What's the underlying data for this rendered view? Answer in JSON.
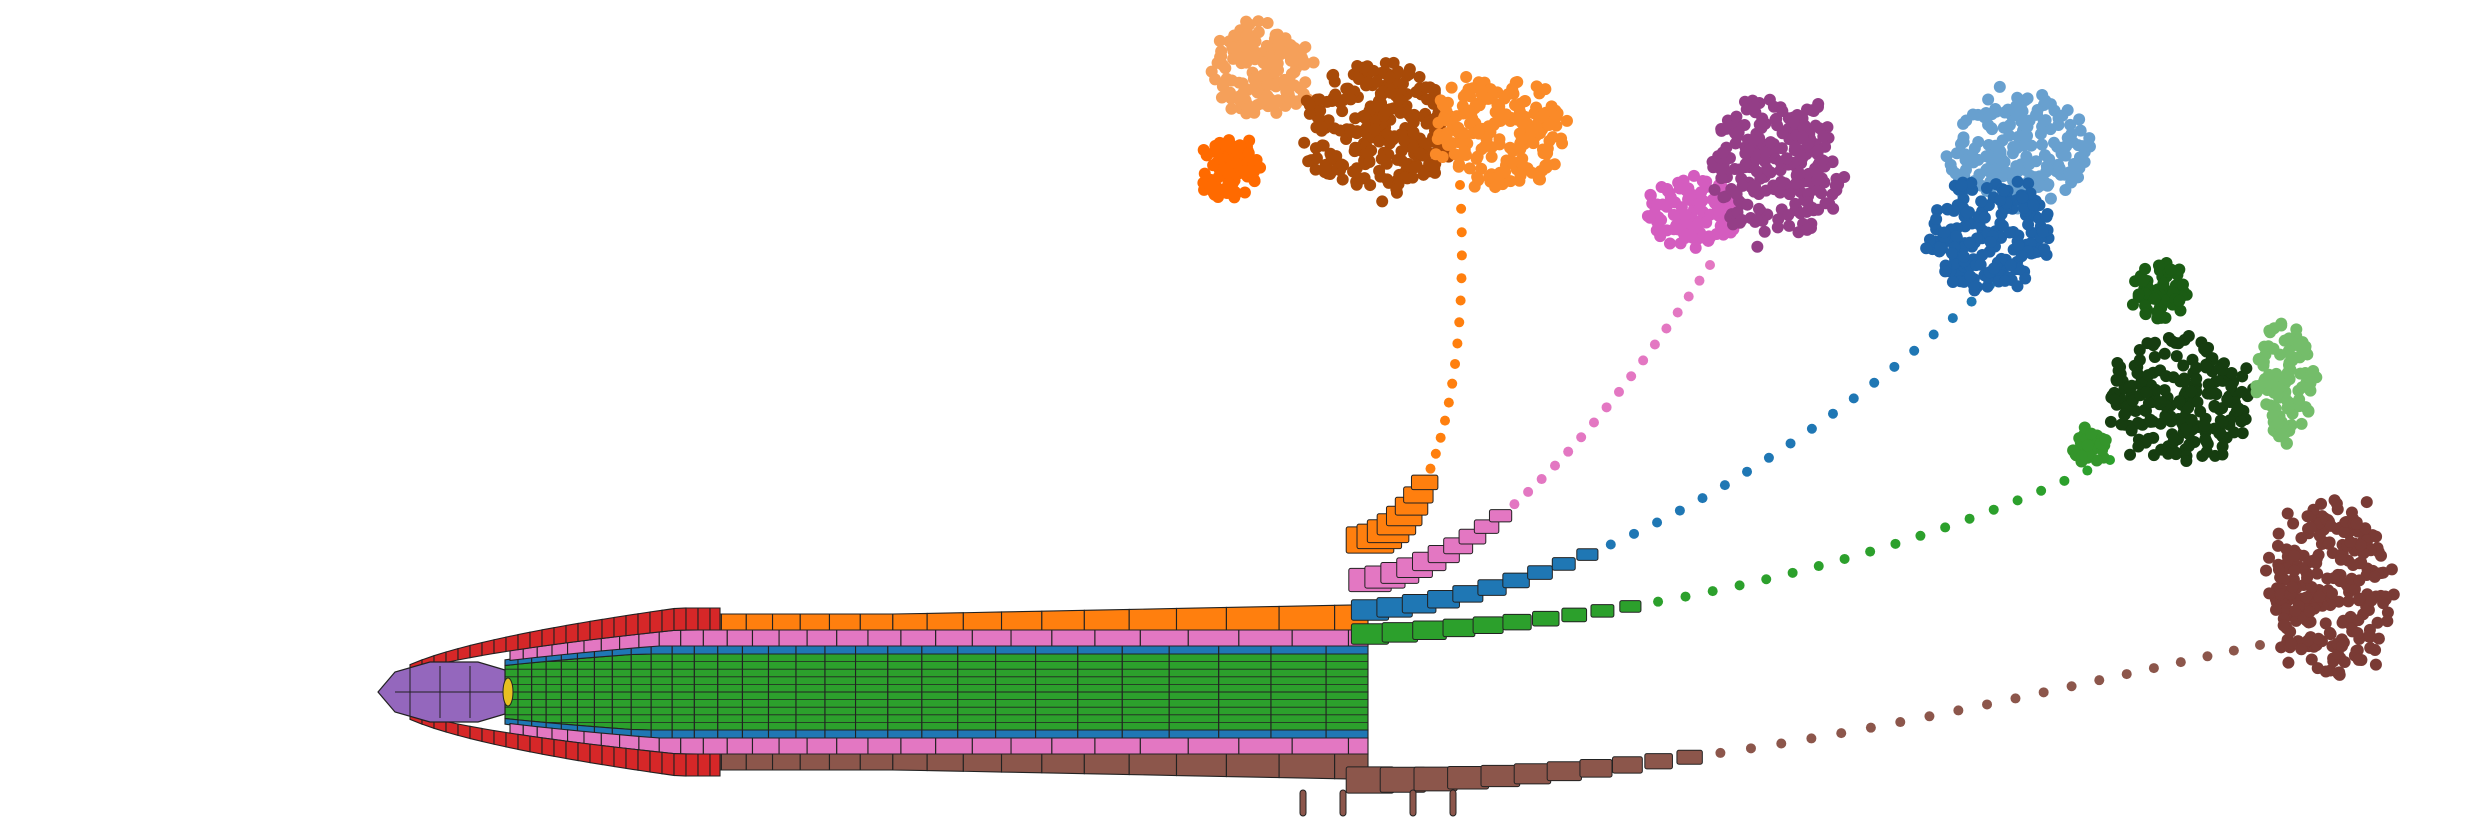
{
  "figure": {
    "description_free": true,
    "colors": {
      "root_cap": "#d62728",
      "quiescent": "#e8c020",
      "columella": "#9467bd",
      "cortex": "#ff7f0e",
      "endodermis": "#e377c2",
      "pericycle": "#1f77b4",
      "stele": "#2ca02c",
      "epidermis": "#8c564b",
      "outline": "#222222"
    },
    "clusters": [
      {
        "name": "orange",
        "subcolors": [
          "#f5a05a",
          "#a84a08",
          "#fa8a28",
          "#ff6a00"
        ]
      },
      {
        "name": "pink",
        "subcolors": [
          "#d45cbf",
          "#943e87"
        ]
      },
      {
        "name": "blue",
        "subcolors": [
          "#68a0cf",
          "#1f63a8"
        ]
      },
      {
        "name": "green",
        "subcolors": [
          "#1b5c14",
          "#163d10",
          "#74bd6a",
          "#34952b"
        ]
      },
      {
        "name": "brown",
        "subcolors": [
          "#7a3b35"
        ]
      }
    ]
  }
}
